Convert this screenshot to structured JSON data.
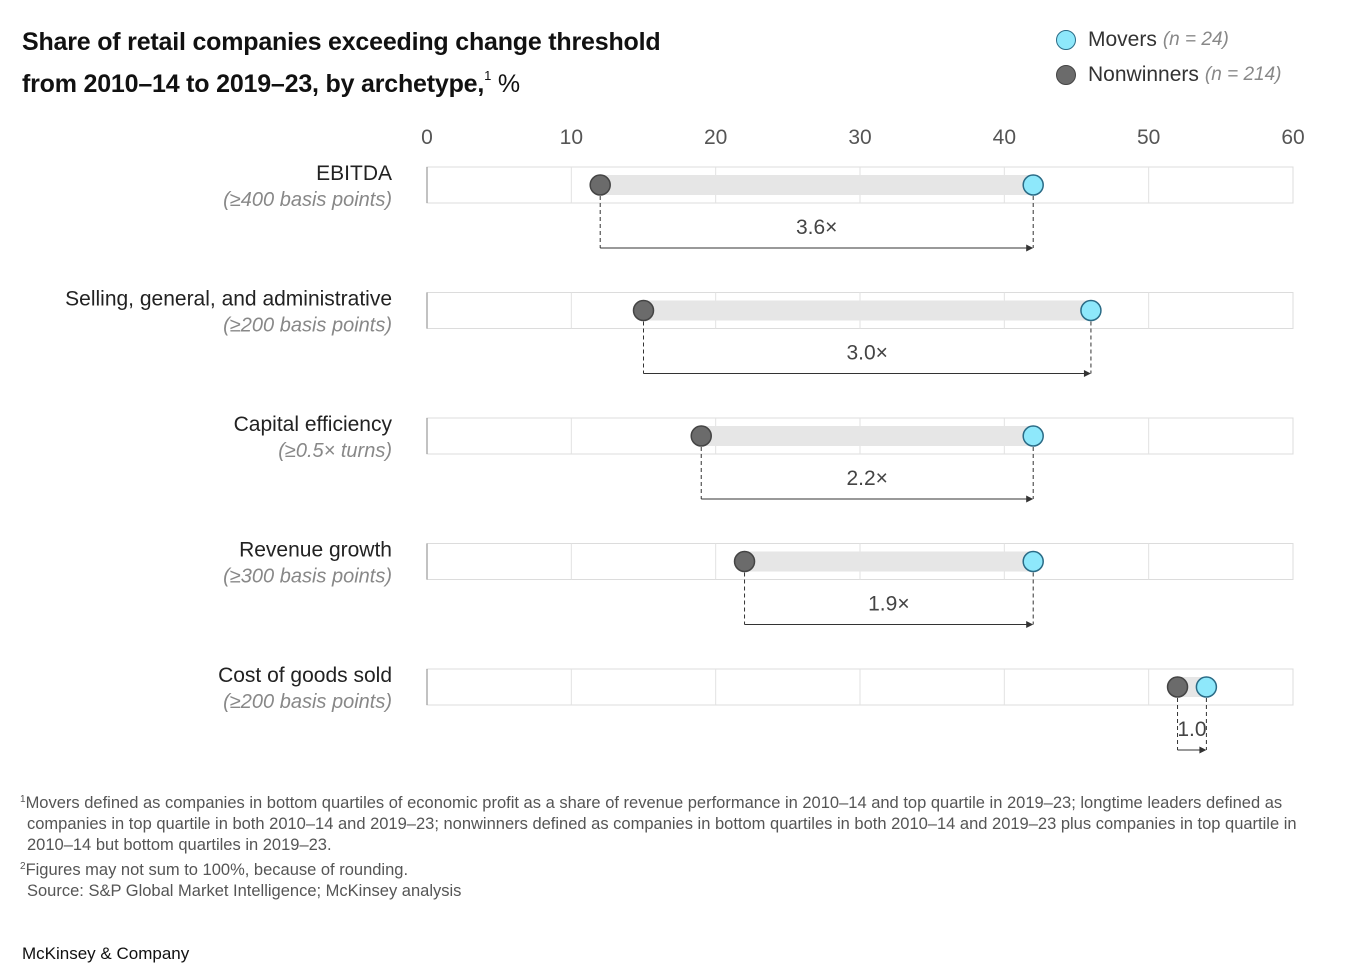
{
  "title": {
    "line1": "Share of retail companies exceeding change threshold",
    "line2": "from 2010–14 to 2019–23, by archetype,",
    "sup": "1",
    "unit": " %"
  },
  "legend": [
    {
      "label": "Movers",
      "note": "(n = 24)",
      "color": "#8ee8fb"
    },
    {
      "label": "Nonwinners",
      "note": "(n = 214)",
      "color": "#6b6b6b"
    }
  ],
  "chart_data": {
    "type": "dumbbell",
    "xlim": [
      0,
      60
    ],
    "xticks": [
      0,
      10,
      20,
      30,
      40,
      50,
      60
    ],
    "series": [
      {
        "name": "Nonwinners",
        "color": "#6b6b6b"
      },
      {
        "name": "Movers",
        "color": "#8ee8fb"
      }
    ],
    "categories": [
      {
        "label": "EBITDA",
        "sublabel": "(≥400 basis points)",
        "nonwinners": 12,
        "movers": 42,
        "ratio": "3.6×"
      },
      {
        "label": "Selling, general, and administrative",
        "sublabel": "(≥200 basis points)",
        "nonwinners": 15,
        "movers": 46,
        "ratio": "3.0×"
      },
      {
        "label": "Capital efficiency",
        "sublabel": "(≥0.5× turns)",
        "nonwinners": 19,
        "movers": 42,
        "ratio": "2.2×"
      },
      {
        "label": "Revenue growth",
        "sublabel": "(≥300 basis points)",
        "nonwinners": 22,
        "movers": 42,
        "ratio": "1.9×"
      },
      {
        "label": "Cost of goods sold",
        "sublabel": "(≥200 basis points)",
        "nonwinners": 52,
        "movers": 54,
        "ratio": "1.0"
      }
    ]
  },
  "footnotes": [
    {
      "sup": "1",
      "text": "Movers defined as companies in bottom quartiles of economic profit as a share of revenue performance in 2010–14 and top quartile in 2019–23; longtime leaders defined as companies in top quartile in both 2010–14 and 2019–23; nonwinners defined as companies in bottom quartiles in both 2010–14 and 2019–23 plus companies in top quartile in 2010–14 but bottom quartiles in 2019–23."
    },
    {
      "sup": "2",
      "text": "Figures may not sum to 100%, because of rounding."
    },
    {
      "sup": "",
      "text": "Source: S&P Global Market Intelligence; McKinsey analysis"
    }
  ],
  "brand": "McKinsey & Company"
}
